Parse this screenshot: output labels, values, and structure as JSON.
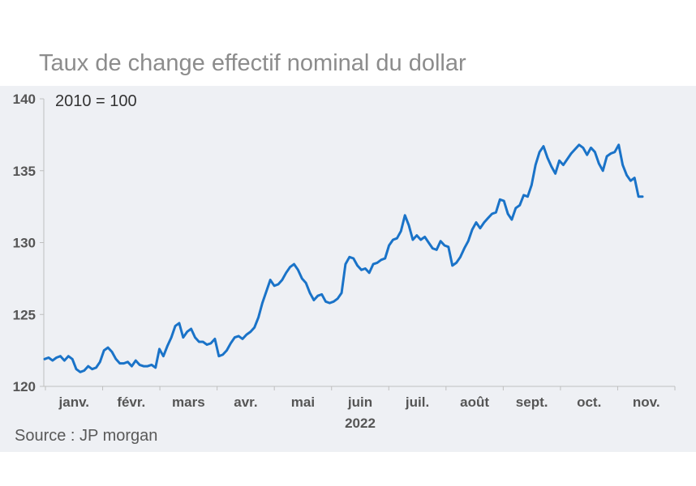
{
  "title": "Taux de change effectif nominal du dollar",
  "source": "Source : JP morgan",
  "colors": {
    "line": "#1a73c8",
    "panel": "#eef0f4",
    "axis": "#bfbfbf"
  },
  "chart_data": {
    "type": "line",
    "title": "Taux de change effectif nominal du dollar",
    "unit_label": "2010 = 100",
    "year_label": "2022",
    "ylim": [
      120,
      140
    ],
    "yticks": [
      120,
      125,
      130,
      135,
      140
    ],
    "months": [
      "janv.",
      "févr.",
      "mars",
      "avr.",
      "mai",
      "juin",
      "juil.",
      "août",
      "sept.",
      "oct.",
      "nov."
    ],
    "grid": false,
    "series": [
      {
        "name": "",
        "values": [
          121.9,
          122.0,
          121.8,
          122.0,
          122.1,
          121.8,
          122.1,
          121.9,
          121.2,
          121.0,
          121.1,
          121.4,
          121.2,
          121.3,
          121.7,
          122.5,
          122.7,
          122.4,
          121.9,
          121.6,
          121.6,
          121.7,
          121.4,
          121.8,
          121.5,
          121.4,
          121.4,
          121.5,
          121.3,
          122.6,
          122.1,
          122.8,
          123.4,
          124.2,
          124.4,
          123.4,
          123.8,
          124.0,
          123.4,
          123.1,
          123.1,
          122.9,
          123.0,
          123.3,
          122.1,
          122.2,
          122.5,
          123.0,
          123.4,
          123.5,
          123.3,
          123.6,
          123.8,
          124.1,
          124.8,
          125.8,
          126.6,
          127.4,
          127.0,
          127.1,
          127.4,
          127.9,
          128.3,
          128.5,
          128.1,
          127.5,
          127.2,
          126.5,
          126.0,
          126.3,
          126.4,
          125.9,
          125.8,
          125.9,
          126.1,
          126.5,
          128.5,
          129.0,
          128.9,
          128.4,
          128.1,
          128.2,
          127.9,
          128.5,
          128.6,
          128.8,
          128.9,
          129.8,
          130.2,
          130.3,
          130.8,
          131.9,
          131.2,
          130.2,
          130.5,
          130.2,
          130.4,
          130.0,
          129.6,
          129.5,
          130.1,
          129.8,
          129.7,
          128.4,
          128.6,
          129.0,
          129.6,
          130.1,
          130.9,
          131.4,
          131.0,
          131.4,
          131.7,
          132.0,
          132.1,
          133.0,
          132.9,
          132.0,
          131.6,
          132.4,
          132.6,
          133.3,
          133.2,
          134.0,
          135.4,
          136.3,
          136.7,
          135.9,
          135.3,
          134.8,
          135.7,
          135.4,
          135.8,
          136.2,
          136.5,
          136.8,
          136.6,
          136.1,
          136.6,
          136.3,
          135.5,
          135.0,
          136.0,
          136.2,
          136.3,
          136.8,
          135.4,
          134.7,
          134.3,
          134.5,
          133.2,
          133.2
        ]
      }
    ]
  }
}
